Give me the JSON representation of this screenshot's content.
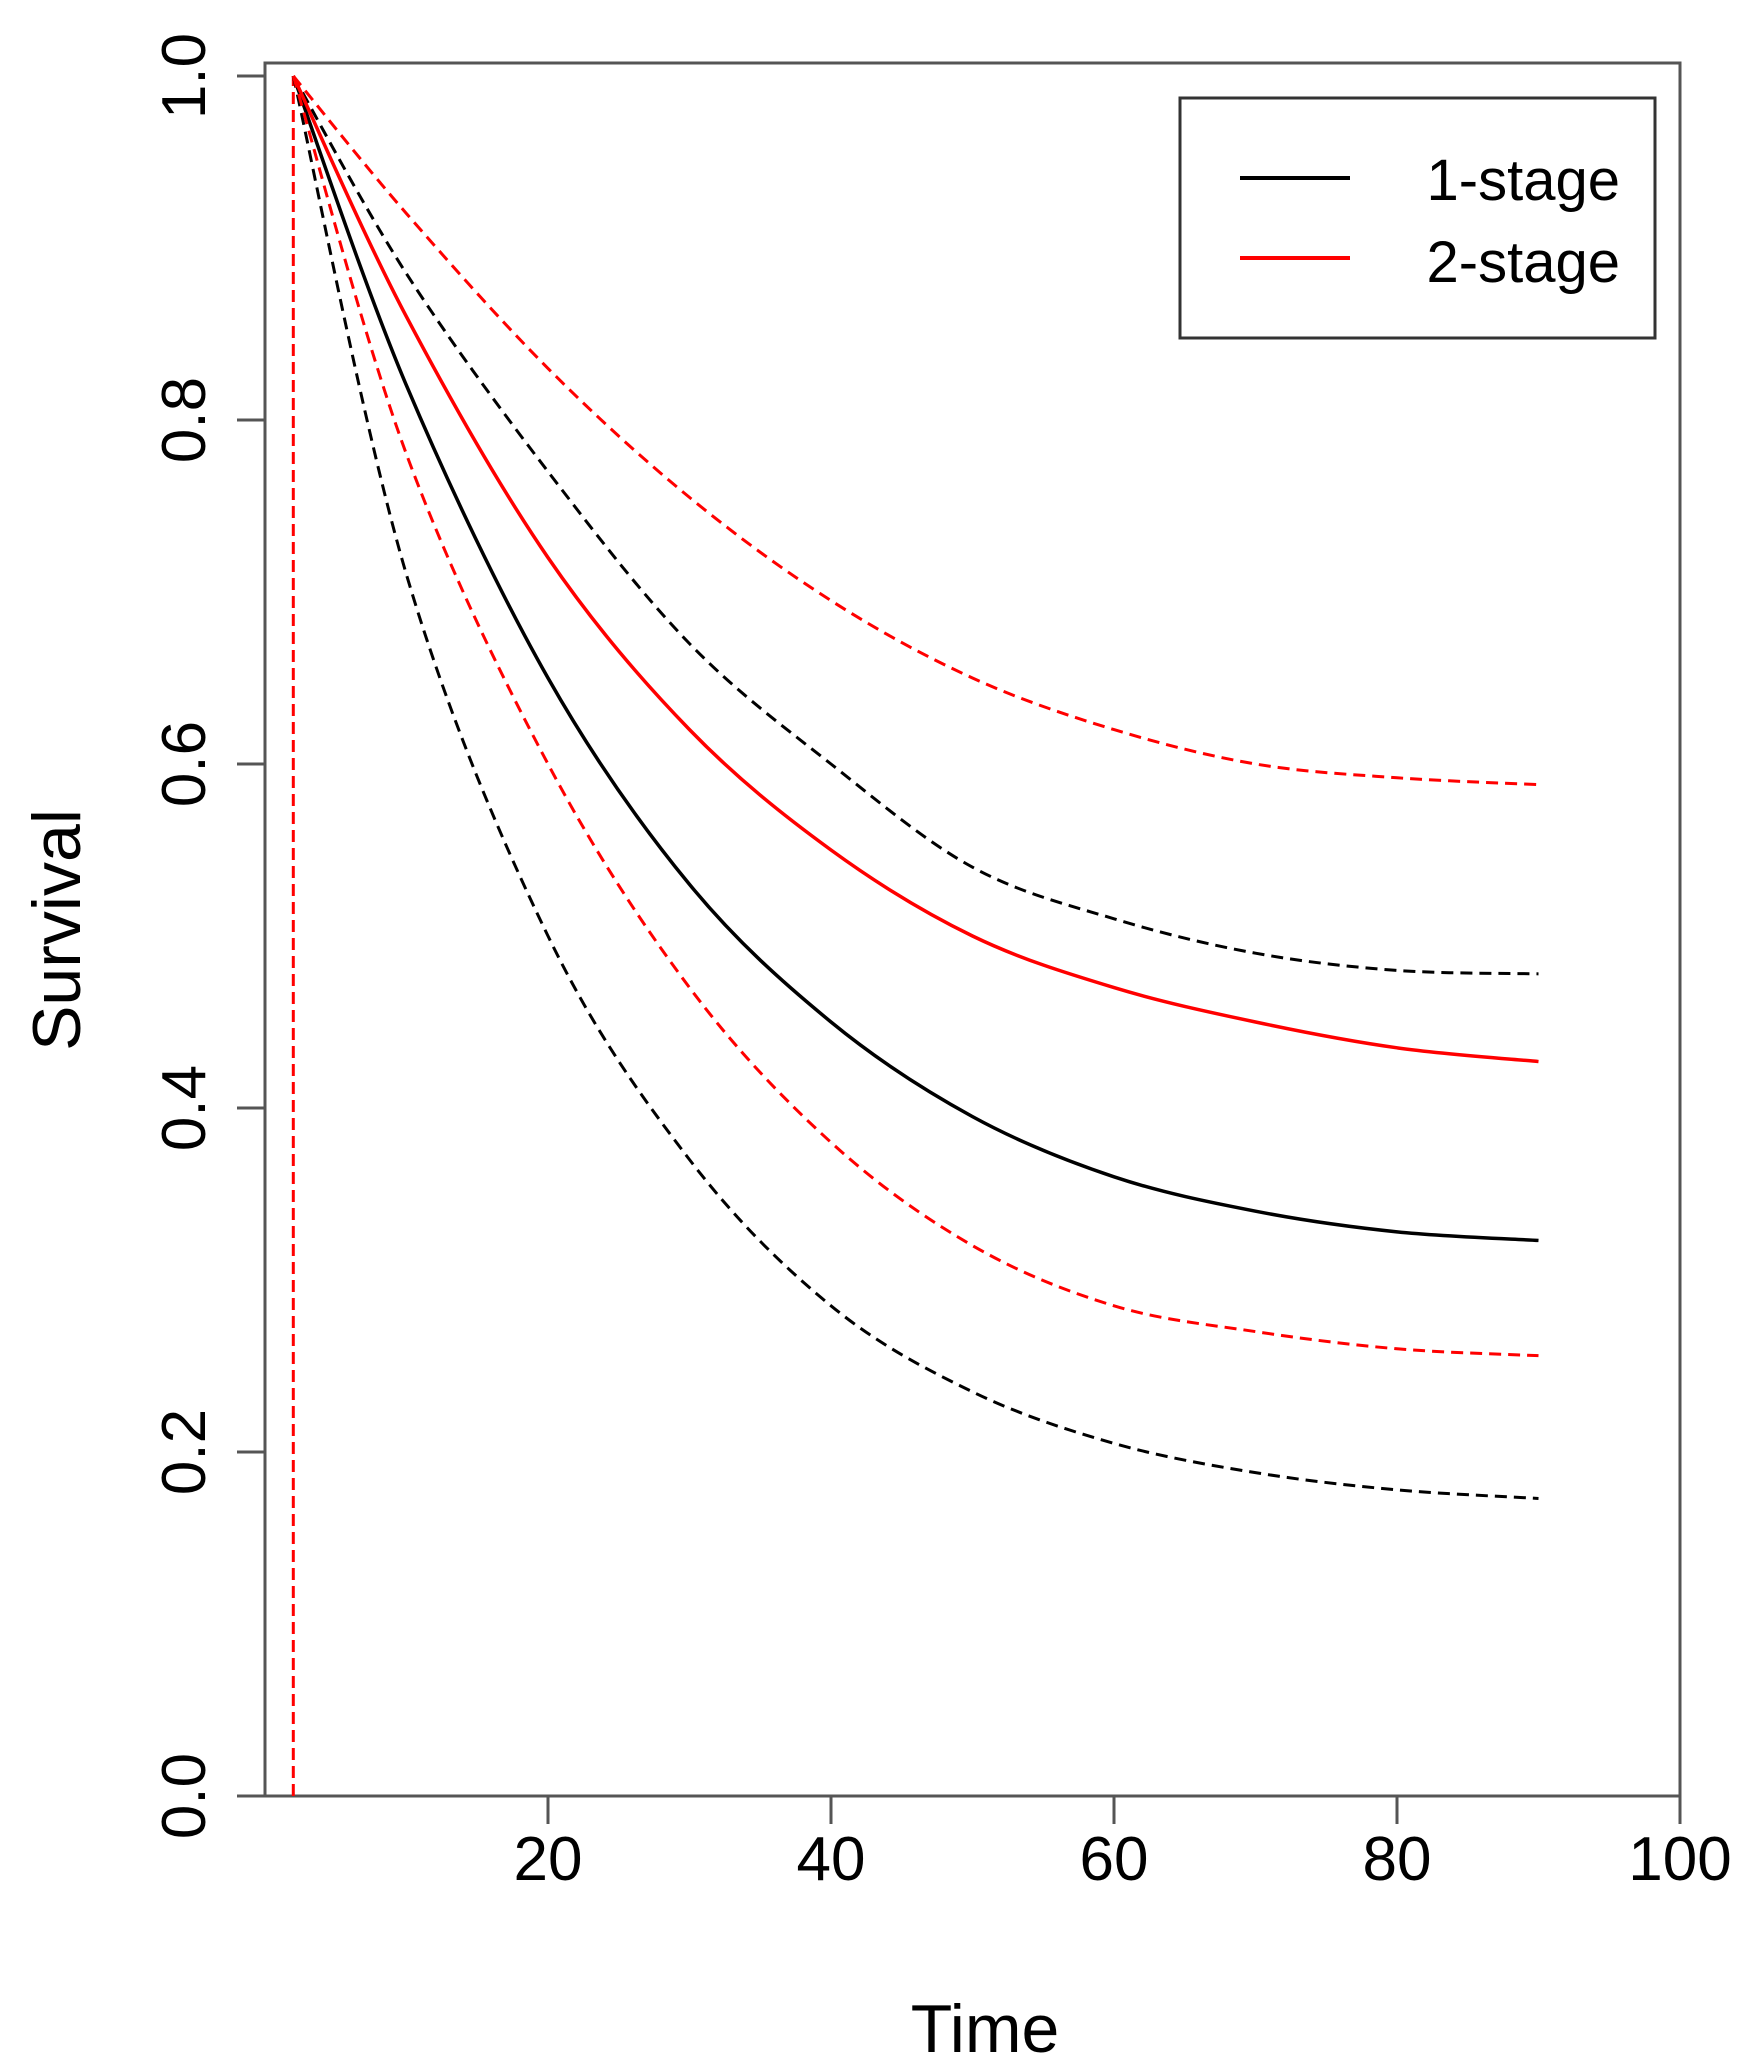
{
  "chart_data": {
    "type": "line",
    "title": "",
    "xlabel": "Time",
    "ylabel": "Survival",
    "xlim": [
      0,
      100
    ],
    "ylim": [
      0,
      1
    ],
    "x_ticks": [
      20,
      40,
      60,
      80,
      100
    ],
    "y_ticks": [
      0.0,
      0.2,
      0.4,
      0.6,
      0.8,
      1.0
    ],
    "x_tick_labels": [
      "20",
      "40",
      "60",
      "80",
      "100"
    ],
    "y_tick_labels": [
      "0.0",
      "0.2",
      "0.4",
      "0.6",
      "0.8",
      "1.0"
    ],
    "grid": false,
    "legend": {
      "position": "top-right",
      "entries": [
        {
          "label": "1-stage",
          "color": "#000000"
        },
        {
          "label": "2-stage",
          "color": "#ff0000"
        }
      ]
    },
    "x": [
      2,
      10,
      20,
      30,
      40,
      50,
      60,
      70,
      80,
      90
    ],
    "series": [
      {
        "name": "1-stage",
        "color": "#000000",
        "style": "solid",
        "values": [
          1.0,
          0.82,
          0.65,
          0.53,
          0.45,
          0.395,
          0.36,
          0.34,
          0.328,
          0.323
        ]
      },
      {
        "name": "1-stage upper",
        "color": "#000000",
        "style": "dashed",
        "values": [
          1.0,
          0.885,
          0.77,
          0.67,
          0.6,
          0.54,
          0.51,
          0.49,
          0.48,
          0.478
        ]
      },
      {
        "name": "1-stage lower",
        "color": "#000000",
        "style": "dashed",
        "values": [
          1.0,
          0.71,
          0.5,
          0.37,
          0.285,
          0.235,
          0.205,
          0.188,
          0.178,
          0.173
        ]
      },
      {
        "name": "2-stage",
        "color": "#ff0000",
        "style": "solid",
        "values": [
          1.0,
          0.86,
          0.72,
          0.62,
          0.55,
          0.5,
          0.47,
          0.45,
          0.435,
          0.427
        ]
      },
      {
        "name": "2-stage upper",
        "color": "#ff0000",
        "style": "dashed",
        "values": [
          1.0,
          0.92,
          0.83,
          0.755,
          0.695,
          0.65,
          0.62,
          0.6,
          0.592,
          0.588
        ]
      },
      {
        "name": "2-stage lower",
        "color": "#ff0000",
        "style": "dashed",
        "values": [
          1.0,
          0.78,
          0.6,
          0.47,
          0.38,
          0.32,
          0.285,
          0.27,
          0.26,
          0.256
        ]
      }
    ],
    "vertical_lines": [
      {
        "x": 2,
        "from": 0,
        "to": 1,
        "color": "#ff0000",
        "style": "dashed"
      }
    ]
  }
}
